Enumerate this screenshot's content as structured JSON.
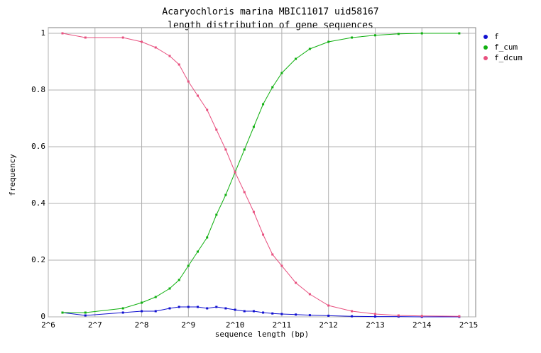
{
  "chart_data": {
    "type": "line",
    "title": "Acaryochloris marina MBIC11017 uid58167",
    "subtitle": "length distribution of gene sequences",
    "x_label": "sequence length (bp)",
    "y_label": "frequency",
    "log_x": true,
    "log_base": 2,
    "grid": true,
    "legend": "top-right",
    "x": [
      79,
      111,
      194,
      256,
      315,
      388,
      446,
      512,
      588,
      676,
      776,
      891,
      1024,
      1176,
      1351,
      1552,
      1783,
      2048,
      2521,
      3104,
      4096,
      5793,
      8192,
      11585,
      16384,
      28526
    ],
    "series": [
      {
        "name": "f",
        "color": "#1010d0",
        "values": [
          0.015,
          0.005,
          0.015,
          0.02,
          0.02,
          0.03,
          0.035,
          0.035,
          0.035,
          0.03,
          0.035,
          0.03,
          0.025,
          0.02,
          0.02,
          0.015,
          0.012,
          0.01,
          0.008,
          0.006,
          0.004,
          0.002,
          0.001,
          0.001,
          0,
          0
        ]
      },
      {
        "name": "f_cum",
        "color": "#10b010",
        "values": [
          0.015,
          0.015,
          0.03,
          0.05,
          0.07,
          0.1,
          0.13,
          0.18,
          0.23,
          0.28,
          0.36,
          0.43,
          0.51,
          0.59,
          0.67,
          0.75,
          0.81,
          0.86,
          0.91,
          0.945,
          0.97,
          0.985,
          0.993,
          0.998,
          1,
          1
        ]
      },
      {
        "name": "f_dcum",
        "color": "#e8507f",
        "values": [
          1,
          0.985,
          0.985,
          0.97,
          0.95,
          0.92,
          0.89,
          0.83,
          0.78,
          0.73,
          0.66,
          0.59,
          0.51,
          0.44,
          0.37,
          0.29,
          0.22,
          0.18,
          0.12,
          0.08,
          0.04,
          0.02,
          0.01,
          0.005,
          0.003,
          0.002
        ]
      }
    ],
    "xlim": [
      64,
      36400
    ],
    "ylim": [
      0,
      1.02
    ],
    "xticks": [
      {
        "value": 64,
        "label": "2^6"
      },
      {
        "value": 128,
        "label": "2^7"
      },
      {
        "value": 256,
        "label": "2^8"
      },
      {
        "value": 512,
        "label": "2^9"
      },
      {
        "value": 1024,
        "label": "2^10"
      },
      {
        "value": 2048,
        "label": "2^11"
      },
      {
        "value": 4096,
        "label": "2^12"
      },
      {
        "value": 8192,
        "label": "2^13"
      },
      {
        "value": 16384,
        "label": "2^14"
      },
      {
        "value": 32768,
        "label": "2^15"
      }
    ],
    "yticks": [
      0,
      0.2,
      0.4,
      0.6,
      0.8,
      1
    ]
  }
}
